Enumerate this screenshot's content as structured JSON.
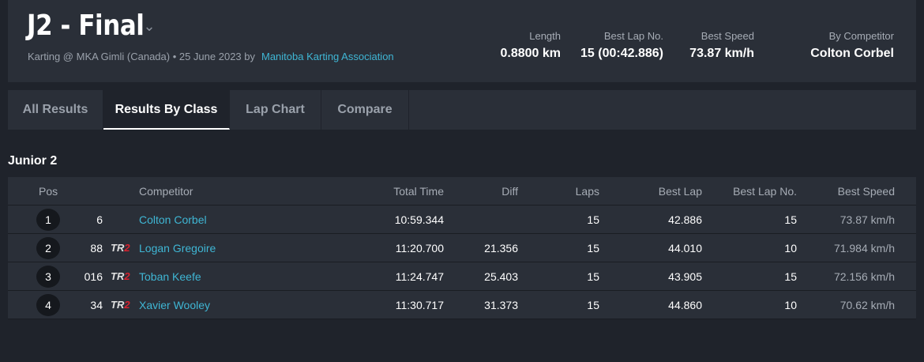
{
  "header": {
    "title": "J2 - Final",
    "subtitle_prefix": "Karting @ MKA Gimli (Canada) • 25 June 2023 by",
    "organizer": "Manitoba Karting Association",
    "stats": [
      {
        "label": "Length",
        "value": "0.8800 km"
      },
      {
        "label": "Best Lap No.",
        "value": "15 (00:42.886)"
      },
      {
        "label": "Best Speed",
        "value": "73.87 km/h"
      },
      {
        "label": "By Competitor",
        "value": "Colton Corbel"
      }
    ]
  },
  "tabs": [
    {
      "label": "All Results"
    },
    {
      "label": "Results By Class",
      "active": true
    },
    {
      "label": "Lap Chart"
    },
    {
      "label": "Compare"
    }
  ],
  "class_name": "Junior 2",
  "columns": {
    "pos": "Pos",
    "competitor": "Competitor",
    "total_time": "Total Time",
    "diff": "Diff",
    "laps": "Laps",
    "best_lap": "Best Lap",
    "best_lap_no": "Best Lap No.",
    "best_speed": "Best Speed"
  },
  "rows": [
    {
      "pos": "1",
      "number": "6",
      "team_logo": "",
      "competitor": "Colton Corbel",
      "total_time": "10:59.344",
      "diff": "",
      "laps": "15",
      "best_lap": "42.886",
      "best_lap_no": "15",
      "best_speed": "73.87 km/h"
    },
    {
      "pos": "2",
      "number": "88",
      "team_logo": "TR2",
      "competitor": "Logan Gregoire",
      "total_time": "11:20.700",
      "diff": "21.356",
      "laps": "15",
      "best_lap": "44.010",
      "best_lap_no": "10",
      "best_speed": "71.984 km/h"
    },
    {
      "pos": "3",
      "number": "016",
      "team_logo": "TR2",
      "competitor": "Toban Keefe",
      "total_time": "11:24.747",
      "diff": "25.403",
      "laps": "15",
      "best_lap": "43.905",
      "best_lap_no": "15",
      "best_speed": "72.156 km/h"
    },
    {
      "pos": "4",
      "number": "34",
      "team_logo": "TR2",
      "competitor": "Xavier Wooley",
      "total_time": "11:30.717",
      "diff": "31.373",
      "laps": "15",
      "best_lap": "44.860",
      "best_lap_no": "10",
      "best_speed": "70.62 km/h"
    }
  ]
}
